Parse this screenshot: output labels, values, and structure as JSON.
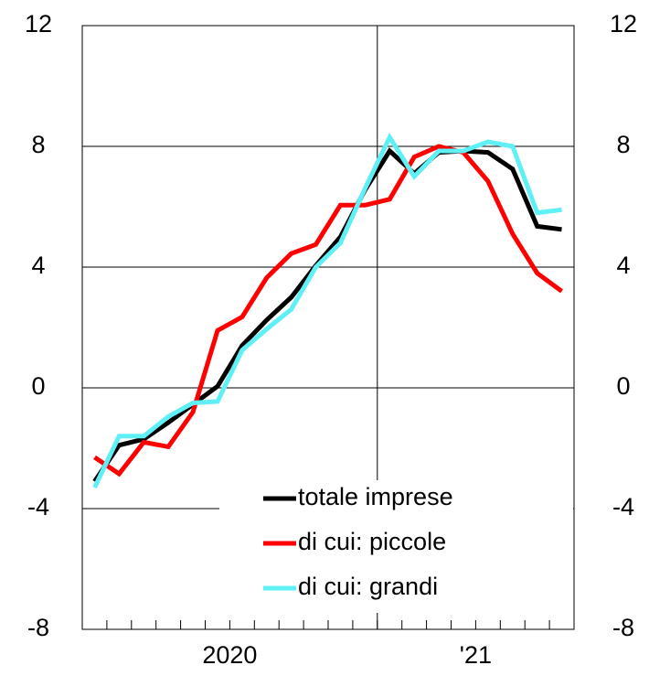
{
  "chart_data": {
    "type": "line",
    "x": [
      0.5,
      1.5,
      2.5,
      3.5,
      4.5,
      5.5,
      6.5,
      7.5,
      8.5,
      9.5,
      10.5,
      11.5,
      12.5,
      13.5,
      14.5,
      15.5,
      16.5,
      17.5,
      18.5,
      19.5
    ],
    "xlim": [
      0,
      20
    ],
    "xticks": [
      {
        "value": 6,
        "label": "2020"
      },
      {
        "value": 16,
        "label": "'21"
      }
    ],
    "x_gridlines": [
      12
    ],
    "ylim": [
      -8,
      12
    ],
    "yticks": [
      -8,
      -4,
      0,
      4,
      8,
      12
    ],
    "y2lim": [
      -8,
      12
    ],
    "y2ticks": [
      -8,
      -4,
      0,
      4,
      8,
      12
    ],
    "grid": true,
    "legend": "lower right",
    "series": [
      {
        "name": "totale imprese",
        "color": "#000000",
        "values": [
          -3.1,
          -1.9,
          -1.7,
          -1.15,
          -0.55,
          0.05,
          1.4,
          2.25,
          3.0,
          4.05,
          5.0,
          6.55,
          7.85,
          7.1,
          7.8,
          7.85,
          7.8,
          7.25,
          5.35,
          5.25
        ]
      },
      {
        "name": "di cui: piccole",
        "color": "#ff0000",
        "values": [
          -2.3,
          -2.85,
          -1.8,
          -1.95,
          -0.8,
          1.9,
          2.35,
          3.65,
          4.45,
          4.75,
          6.05,
          6.05,
          6.25,
          7.65,
          8.0,
          7.8,
          6.85,
          5.1,
          3.8,
          3.2
        ]
      },
      {
        "name": "di cui: grandi",
        "color": "#5ff0f5",
        "values": [
          -3.3,
          -1.6,
          -1.6,
          -0.95,
          -0.5,
          -0.45,
          1.25,
          1.95,
          2.6,
          4.0,
          4.8,
          6.6,
          8.3,
          7.0,
          7.85,
          7.85,
          8.15,
          8.0,
          5.8,
          5.9
        ]
      }
    ]
  }
}
